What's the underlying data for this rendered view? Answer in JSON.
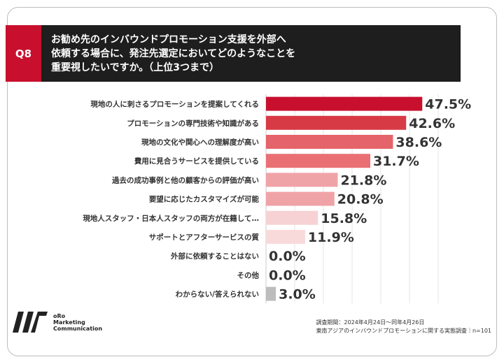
{
  "question": {
    "number": "Q8",
    "title": "お勧め先のインバウンドプロモーション支援を外部へ\n依頼する場合に、発注先選定においてどのようなことを\n重要視したいですか。（上位3つまで）"
  },
  "chart_data": {
    "type": "bar",
    "orientation": "horizontal",
    "categories": [
      "現地の人に刺さるプロモーションを提案してくれる",
      "プロモーションの専門技術や知識がある",
      "現地の文化や関心への理解度が高い",
      "費用に見合うサービスを提供している",
      "過去の成功事例と他の顧客からの評価が高い",
      "要望に応じたカスタマイズが可能",
      "現地人スタッフ・日本人スタッフの両方が在籍して…",
      "サポートとアフターサービスの質",
      "外部に依頼することはない",
      "その他",
      "わからない/答えられない"
    ],
    "values": [
      47.5,
      42.6,
      38.6,
      31.7,
      21.8,
      20.8,
      15.8,
      11.9,
      0.0,
      0.0,
      3.0
    ],
    "value_labels": [
      "47.5%",
      "42.6%",
      "38.6%",
      "31.7%",
      "21.8%",
      "20.8%",
      "15.8%",
      "11.9%",
      "0.0%",
      "0.0%",
      "3.0%"
    ],
    "colors": [
      "#c8102e",
      "#d83a45",
      "#e5636a",
      "#ea6f74",
      "#f0a3a7",
      "#f0a3a7",
      "#f7d2d4",
      "#f9dadb",
      "#f9dadb",
      "#f9dadb",
      "#bdbdbd"
    ],
    "xlim": [
      0,
      50
    ],
    "grid": true
  },
  "footer": {
    "logo_text": "oRo\nMarketing\nCommunication",
    "period": "調査期間：2024年4月24日〜同年4月26日",
    "survey": "東南アジアのインバウンドプロモーションに関する実態調査｜n=101"
  }
}
